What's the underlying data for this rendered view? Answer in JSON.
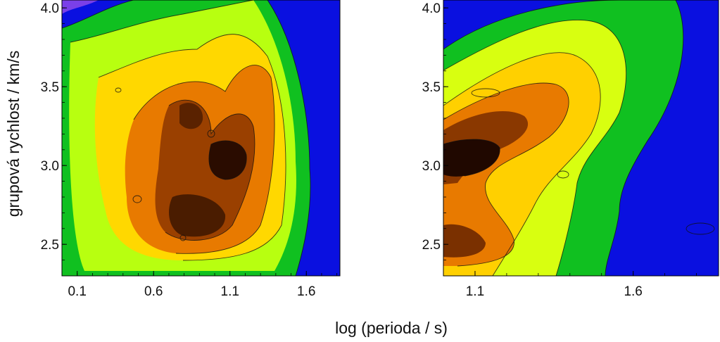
{
  "figure": {
    "ylabel": "grupová rychlost / km/s",
    "xlabel": "log (perioda / s)"
  },
  "chart_data": [
    {
      "type": "heatmap",
      "title": "",
      "xlabel": "log (perioda / s)",
      "ylabel": "grupová rychlost / km/s",
      "xlim": [
        0.0,
        1.82
      ],
      "ylim": [
        2.3,
        4.05
      ],
      "xticks": [
        0.1,
        0.6,
        1.1,
        1.6
      ],
      "xtick_labels": [
        "0.1",
        "0.6",
        "1.1",
        "1.6"
      ],
      "yticks": [
        2.5,
        3.0,
        3.5,
        4.0
      ],
      "ytick_labels": [
        "2.5",
        "3.0",
        "3.5",
        "4.0"
      ],
      "colormap": [
        "#6a00c8",
        "#0000e6",
        "#00c000",
        "#d8ff00",
        "#ffd000",
        "#e07800",
        "#8a3800",
        "#200800"
      ],
      "contours": true,
      "peaks": [
        {
          "x": 1.1,
          "y": 3.07,
          "level": 1.0
        },
        {
          "x": 0.9,
          "y": 2.65,
          "level": 0.9
        },
        {
          "x": 0.8,
          "y": 3.3,
          "level": 0.78
        }
      ]
    },
    {
      "type": "heatmap",
      "title": "",
      "xlabel": "log (perioda / s)",
      "ylabel": "",
      "xlim": [
        1.0,
        1.87
      ],
      "ylim": [
        2.3,
        4.05
      ],
      "xticks": [
        1.1,
        1.6
      ],
      "xtick_labels": [
        "1.1",
        "1.6"
      ],
      "yticks": [
        2.5,
        3.0,
        3.5,
        4.0
      ],
      "ytick_labels": [
        "2.5",
        "3.0",
        "3.5",
        "4.0"
      ],
      "colormap": [
        "#6a00c8",
        "#0000e6",
        "#00c000",
        "#d8ff00",
        "#ffd000",
        "#e07800",
        "#8a3800",
        "#200800"
      ],
      "contours": true,
      "peaks": [
        {
          "x": 1.08,
          "y": 3.08,
          "level": 1.0
        },
        {
          "x": 1.1,
          "y": 2.55,
          "level": 0.82
        }
      ]
    }
  ]
}
